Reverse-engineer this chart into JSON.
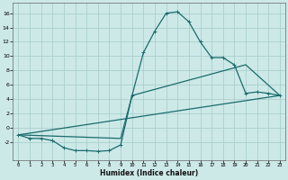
{
  "xlabel": "Humidex (Indice chaleur)",
  "xlim": [
    -0.5,
    23.5
  ],
  "ylim": [
    -4.5,
    17.5
  ],
  "yticks": [
    -2,
    0,
    2,
    4,
    6,
    8,
    10,
    12,
    14,
    16
  ],
  "xticks": [
    0,
    1,
    2,
    3,
    4,
    5,
    6,
    7,
    8,
    9,
    10,
    11,
    12,
    13,
    14,
    15,
    16,
    17,
    18,
    19,
    20,
    21,
    22,
    23
  ],
  "background_color": "#cce9e8",
  "grid_color": "#aacfce",
  "line_color": "#1a6b6b",
  "line1_x": [
    0,
    1,
    2,
    3,
    4,
    5,
    6,
    7,
    8,
    9,
    10,
    11,
    12,
    13,
    14,
    15,
    16,
    17,
    18,
    19,
    20,
    21,
    22,
    23
  ],
  "line1_y": [
    -1.0,
    -1.5,
    -1.5,
    -1.8,
    -2.8,
    -3.2,
    -3.2,
    -3.3,
    -3.2,
    -2.4,
    4.5,
    10.5,
    13.5,
    16.0,
    16.2,
    14.8,
    12.0,
    9.8,
    9.8,
    8.8,
    4.8,
    5.0,
    4.8,
    4.5
  ],
  "line2_x": [
    0,
    9,
    10,
    20,
    23
  ],
  "line2_y": [
    -1.0,
    -1.5,
    4.5,
    8.8,
    4.5
  ],
  "line3_x": [
    0,
    23
  ],
  "line3_y": [
    -1.0,
    4.5
  ]
}
